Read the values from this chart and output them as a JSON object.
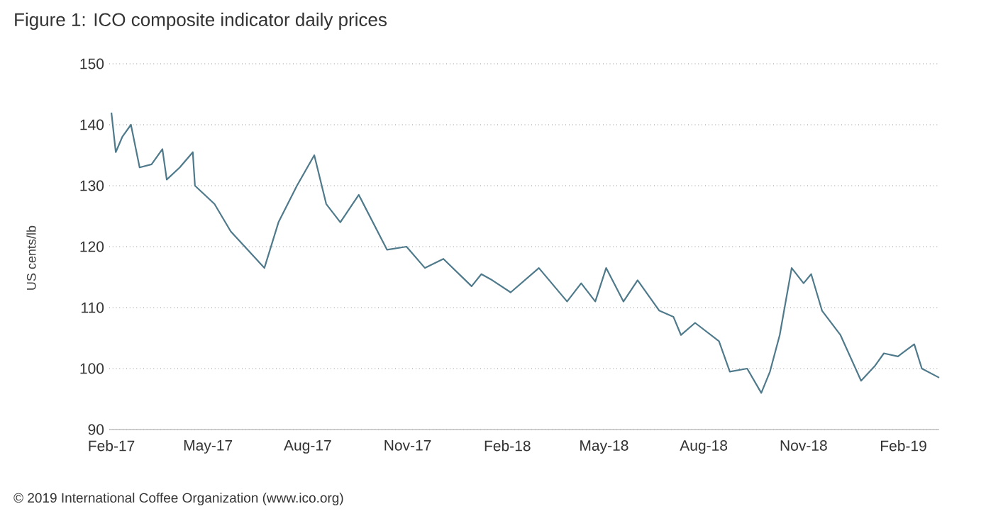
{
  "chart_data": {
    "type": "line",
    "title": "Figure 1: ICO composite indicator daily prices",
    "ylabel": "US cents/lb",
    "annotations": [
      "© 2019 International Coffee Organization (www.ico.org)"
    ],
    "x": [
      "2017-02-01",
      "2017-02-05",
      "2017-02-11",
      "2017-02-19",
      "2017-02-27",
      "2017-03-10",
      "2017-03-20",
      "2017-03-24",
      "2017-04-05",
      "2017-04-17",
      "2017-04-19",
      "2017-05-07",
      "2017-05-22",
      "2017-06-22",
      "2017-07-05",
      "2017-07-22",
      "2017-08-07",
      "2017-08-18",
      "2017-08-31",
      "2017-09-17",
      "2017-10-13",
      "2017-10-31",
      "2017-11-17",
      "2017-12-04",
      "2017-12-30",
      "2018-01-08",
      "2018-01-18",
      "2018-02-04",
      "2018-03-02",
      "2018-03-28",
      "2018-04-10",
      "2018-04-23",
      "2018-05-03",
      "2018-05-19",
      "2018-06-01",
      "2018-06-21",
      "2018-07-04",
      "2018-07-11",
      "2018-07-24",
      "2018-08-15",
      "2018-08-25",
      "2018-09-10",
      "2018-09-23",
      "2018-10-01",
      "2018-10-10",
      "2018-10-21",
      "2018-11-01",
      "2018-11-08",
      "2018-11-18",
      "2018-12-05",
      "2018-12-24",
      "2019-01-06",
      "2019-01-14",
      "2019-01-27",
      "2019-02-11",
      "2019-02-18",
      "2019-03-06"
    ],
    "values": [
      142,
      135.5,
      138,
      140,
      133,
      133.5,
      136,
      131,
      133,
      135.5,
      130,
      127,
      122.5,
      116.5,
      124,
      130,
      135,
      127,
      124,
      128.5,
      119.5,
      120,
      116.5,
      118,
      113.5,
      115.5,
      114.5,
      112.5,
      116.5,
      111,
      114,
      111,
      116.5,
      111,
      114.5,
      109.5,
      108.5,
      105.5,
      107.5,
      104.5,
      99.5,
      100,
      96,
      99.5,
      105.5,
      116.5,
      114,
      115.5,
      109.5,
      105.5,
      98,
      100.5,
      102.5,
      102,
      104,
      100,
      98.5
    ],
    "color": "#4f7a8c",
    "xlim": [
      "2017-01-30",
      "2019-03-06"
    ],
    "xticks": [
      {
        "value": "2017-02-01",
        "label": "Feb-17"
      },
      {
        "value": "2017-05-01",
        "label": "May-17"
      },
      {
        "value": "2017-08-01",
        "label": "Aug-17"
      },
      {
        "value": "2017-11-01",
        "label": "Nov-17"
      },
      {
        "value": "2018-02-01",
        "label": "Feb-18"
      },
      {
        "value": "2018-05-01",
        "label": "May-18"
      },
      {
        "value": "2018-08-01",
        "label": "Aug-18"
      },
      {
        "value": "2018-11-01",
        "label": "Nov-18"
      },
      {
        "value": "2019-02-01",
        "label": "Feb-19"
      }
    ],
    "ylim": [
      90,
      150
    ],
    "yticks": [
      90,
      100,
      110,
      120,
      130,
      140,
      150
    ],
    "grid": "y"
  }
}
